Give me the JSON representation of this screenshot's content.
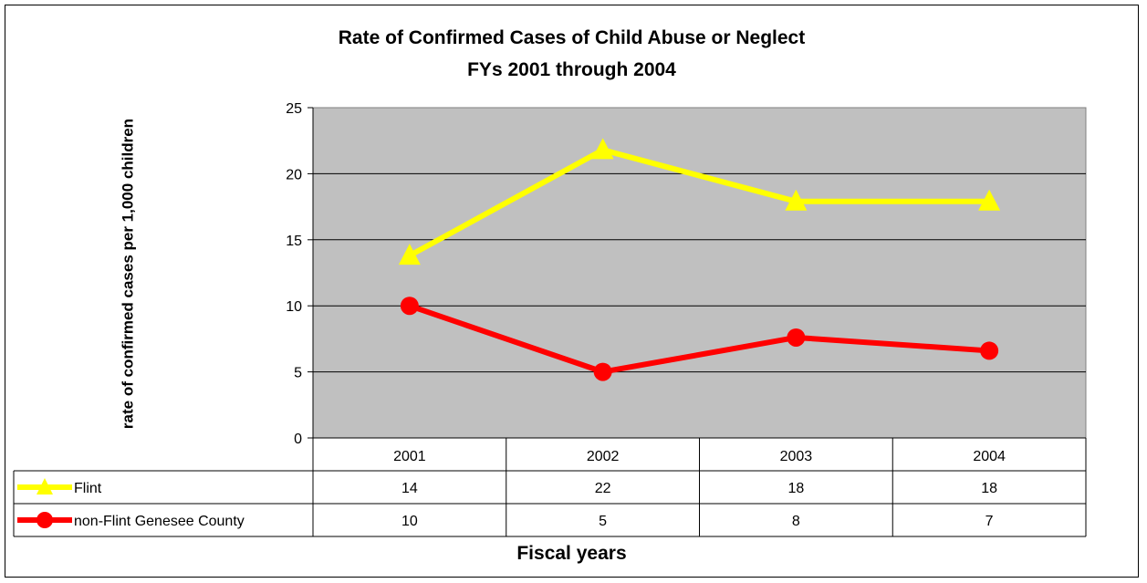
{
  "chart_data": {
    "type": "line",
    "title": "Rate of Confirmed Cases of Child Abuse or Neglect",
    "subtitle": "FYs 2001 through 2004",
    "xlabel": "Fiscal years",
    "ylabel": "rate of confirmed cases per 1,000 children",
    "categories": [
      "2001",
      "2002",
      "2003",
      "2004"
    ],
    "ylim": [
      0,
      25
    ],
    "yticks": [
      0,
      5,
      10,
      15,
      20,
      25
    ],
    "grid": true,
    "legend": "data table",
    "series": [
      {
        "name": "Flint",
        "values": [
          14,
          22,
          18,
          18
        ],
        "plotted": [
          13.8,
          21.8,
          17.9,
          17.9
        ],
        "color": "#FFFF00",
        "marker": "triangle"
      },
      {
        "name": "non-Flint Genesee County",
        "values": [
          10,
          5,
          8,
          7
        ],
        "plotted": [
          10.0,
          5.0,
          7.6,
          6.6
        ],
        "color": "#FF0000",
        "marker": "circle"
      }
    ]
  }
}
